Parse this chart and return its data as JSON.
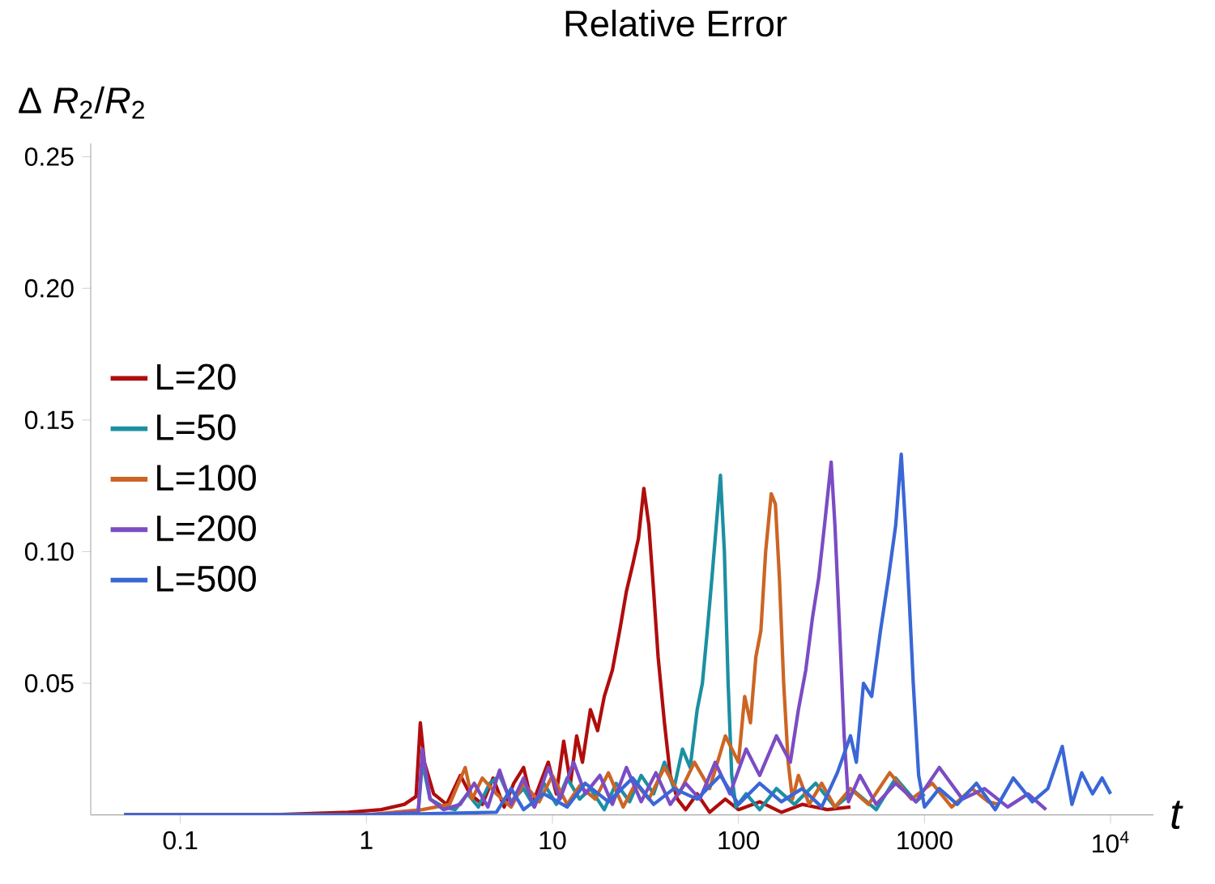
{
  "chart_data": {
    "type": "line",
    "title": "Relative Error",
    "xlabel": "t",
    "ylabel": "Δ *R*$_{2}$/*R*$_{2}$",
    "log": "x",
    "xlim": [
      0.033,
      17000
    ],
    "ylim": [
      0,
      0.255
    ],
    "xticks": [
      0.1,
      1,
      10,
      100,
      1000,
      {
        "value": 10000,
        "label": "10$^{4}$"
      }
    ],
    "yticks": [
      {
        "value": 0.05,
        "label": "0.05"
      },
      {
        "value": 0.1,
        "label": "0.10"
      },
      {
        "value": 0.15,
        "label": "0.15"
      },
      {
        "value": 0.2,
        "label": "0.20"
      },
      {
        "value": 0.25,
        "label": "0.25"
      }
    ],
    "grid": false,
    "legend": "left",
    "marker": "none",
    "line_style": "solid",
    "series": [
      {
        "name": "L=20",
        "color": "#b00d0d",
        "x": [
          0.05,
          0.3,
          0.8,
          1.2,
          1.6,
          1.85,
          1.95,
          2.05,
          2.3,
          2.7,
          3.2,
          3.6,
          4.2,
          4.8,
          5.5,
          6.2,
          7,
          7.8,
          8.6,
          9.5,
          10.5,
          11.5,
          12.5,
          13.5,
          14.5,
          16,
          17.5,
          19,
          21,
          23,
          25,
          27,
          29,
          31,
          33,
          35,
          37,
          40,
          43,
          47,
          52,
          60,
          70,
          85,
          100,
          130,
          170,
          220,
          300,
          400
        ],
        "values": [
          0,
          0,
          0.001,
          0.002,
          0.004,
          0.007,
          0.035,
          0.02,
          0.008,
          0.004,
          0.015,
          0.008,
          0.004,
          0.014,
          0.003,
          0.012,
          0.018,
          0.004,
          0.012,
          0.02,
          0.008,
          0.028,
          0.012,
          0.03,
          0.02,
          0.04,
          0.032,
          0.045,
          0.055,
          0.07,
          0.085,
          0.095,
          0.105,
          0.124,
          0.11,
          0.085,
          0.06,
          0.035,
          0.015,
          0.006,
          0.002,
          0.008,
          0.001,
          0.006,
          0.002,
          0.005,
          0.001,
          0.004,
          0.002,
          0.003
        ]
      },
      {
        "name": "L=50",
        "color": "#1c8fa3",
        "x": [
          0.05,
          1,
          1.9,
          2.0,
          2.2,
          2.6,
          3,
          3.5,
          4,
          4.6,
          5.2,
          6,
          7,
          8,
          9,
          10.5,
          12,
          14,
          16,
          19,
          22,
          26,
          30,
          35,
          40,
          45,
          50,
          55,
          60,
          64,
          68,
          72,
          76,
          80,
          84,
          88,
          92,
          97,
          110,
          130,
          160,
          200,
          260,
          330,
          420,
          550,
          700,
          900,
          1000
        ],
        "values": [
          0,
          0,
          0.001,
          0.02,
          0.006,
          0.003,
          0.002,
          0.008,
          0.003,
          0.012,
          0.015,
          0.005,
          0.01,
          0.003,
          0.012,
          0.004,
          0.014,
          0.006,
          0.01,
          0.002,
          0.012,
          0.005,
          0.015,
          0.008,
          0.02,
          0.01,
          0.025,
          0.018,
          0.04,
          0.05,
          0.07,
          0.09,
          0.11,
          0.129,
          0.1,
          0.05,
          0.015,
          0.003,
          0.008,
          0.002,
          0.01,
          0.004,
          0.012,
          0.003,
          0.009,
          0.002,
          0.014,
          0.005,
          0.008
        ]
      },
      {
        "name": "L=100",
        "color": "#cc6524",
        "x": [
          0.05,
          1,
          2.0,
          2.8,
          3.4,
          3.7,
          4.2,
          5,
          6,
          7,
          8.5,
          10,
          12,
          14,
          17,
          20,
          24,
          28,
          33,
          40,
          48,
          58,
          70,
          85,
          100,
          108,
          116,
          124,
          132,
          140,
          150,
          158,
          166,
          175,
          185,
          195,
          210,
          240,
          280,
          330,
          400,
          500,
          650,
          850,
          1100,
          1400,
          1800,
          2200,
          2500
        ],
        "values": [
          0,
          0,
          0.002,
          0.004,
          0.018,
          0.006,
          0.014,
          0.008,
          0.003,
          0.012,
          0.005,
          0.015,
          0.004,
          0.011,
          0.006,
          0.016,
          0.003,
          0.012,
          0.006,
          0.018,
          0.008,
          0.02,
          0.01,
          0.03,
          0.02,
          0.045,
          0.035,
          0.06,
          0.07,
          0.1,
          0.122,
          0.118,
          0.09,
          0.05,
          0.02,
          0.006,
          0.015,
          0.004,
          0.012,
          0.003,
          0.01,
          0.004,
          0.016,
          0.006,
          0.012,
          0.003,
          0.01,
          0.005,
          0.004
        ]
      },
      {
        "name": "L=200",
        "color": "#7b4cc4",
        "x": [
          0.05,
          1,
          1.9,
          2.0,
          2.2,
          2.6,
          3.2,
          3.8,
          4.5,
          5.2,
          6,
          7,
          8,
          9.5,
          11,
          13,
          15,
          18,
          21,
          25,
          30,
          36,
          43,
          52,
          62,
          75,
          90,
          110,
          130,
          160,
          190,
          210,
          230,
          250,
          270,
          290,
          315,
          330,
          350,
          370,
          390,
          450,
          550,
          700,
          900,
          1200,
          1600,
          2100,
          2800,
          3600,
          4500
        ],
        "values": [
          0,
          0,
          0.001,
          0.025,
          0.006,
          0.002,
          0.004,
          0.012,
          0.003,
          0.017,
          0.004,
          0.014,
          0.003,
          0.018,
          0.006,
          0.02,
          0.008,
          0.015,
          0.004,
          0.018,
          0.005,
          0.016,
          0.004,
          0.012,
          0.006,
          0.02,
          0.008,
          0.025,
          0.015,
          0.03,
          0.02,
          0.04,
          0.055,
          0.075,
          0.09,
          0.11,
          0.134,
          0.11,
          0.07,
          0.03,
          0.005,
          0.015,
          0.004,
          0.012,
          0.005,
          0.018,
          0.006,
          0.01,
          0.003,
          0.008,
          0.002
        ]
      },
      {
        "name": "L=500",
        "color": "#3a67d6",
        "x": [
          0.05,
          1,
          5,
          6,
          7,
          9,
          12,
          15,
          20,
          27,
          35,
          45,
          60,
          80,
          100,
          130,
          170,
          220,
          280,
          340,
          400,
          430,
          470,
          520,
          580,
          640,
          700,
          750,
          790,
          830,
          870,
          930,
          1000,
          1200,
          1500,
          1900,
          2400,
          3000,
          3800,
          4600,
          5500,
          6200,
          7000,
          8000,
          9000,
          10000
        ],
        "values": [
          0,
          0,
          0.001,
          0.01,
          0.002,
          0.008,
          0.003,
          0.012,
          0.005,
          0.014,
          0.004,
          0.01,
          0.006,
          0.015,
          0.004,
          0.012,
          0.005,
          0.01,
          0.003,
          0.016,
          0.03,
          0.02,
          0.05,
          0.045,
          0.07,
          0.09,
          0.11,
          0.137,
          0.11,
          0.08,
          0.05,
          0.015,
          0.003,
          0.01,
          0.004,
          0.012,
          0.002,
          0.014,
          0.005,
          0.01,
          0.026,
          0.004,
          0.016,
          0.008,
          0.014,
          0.008
        ]
      }
    ]
  }
}
